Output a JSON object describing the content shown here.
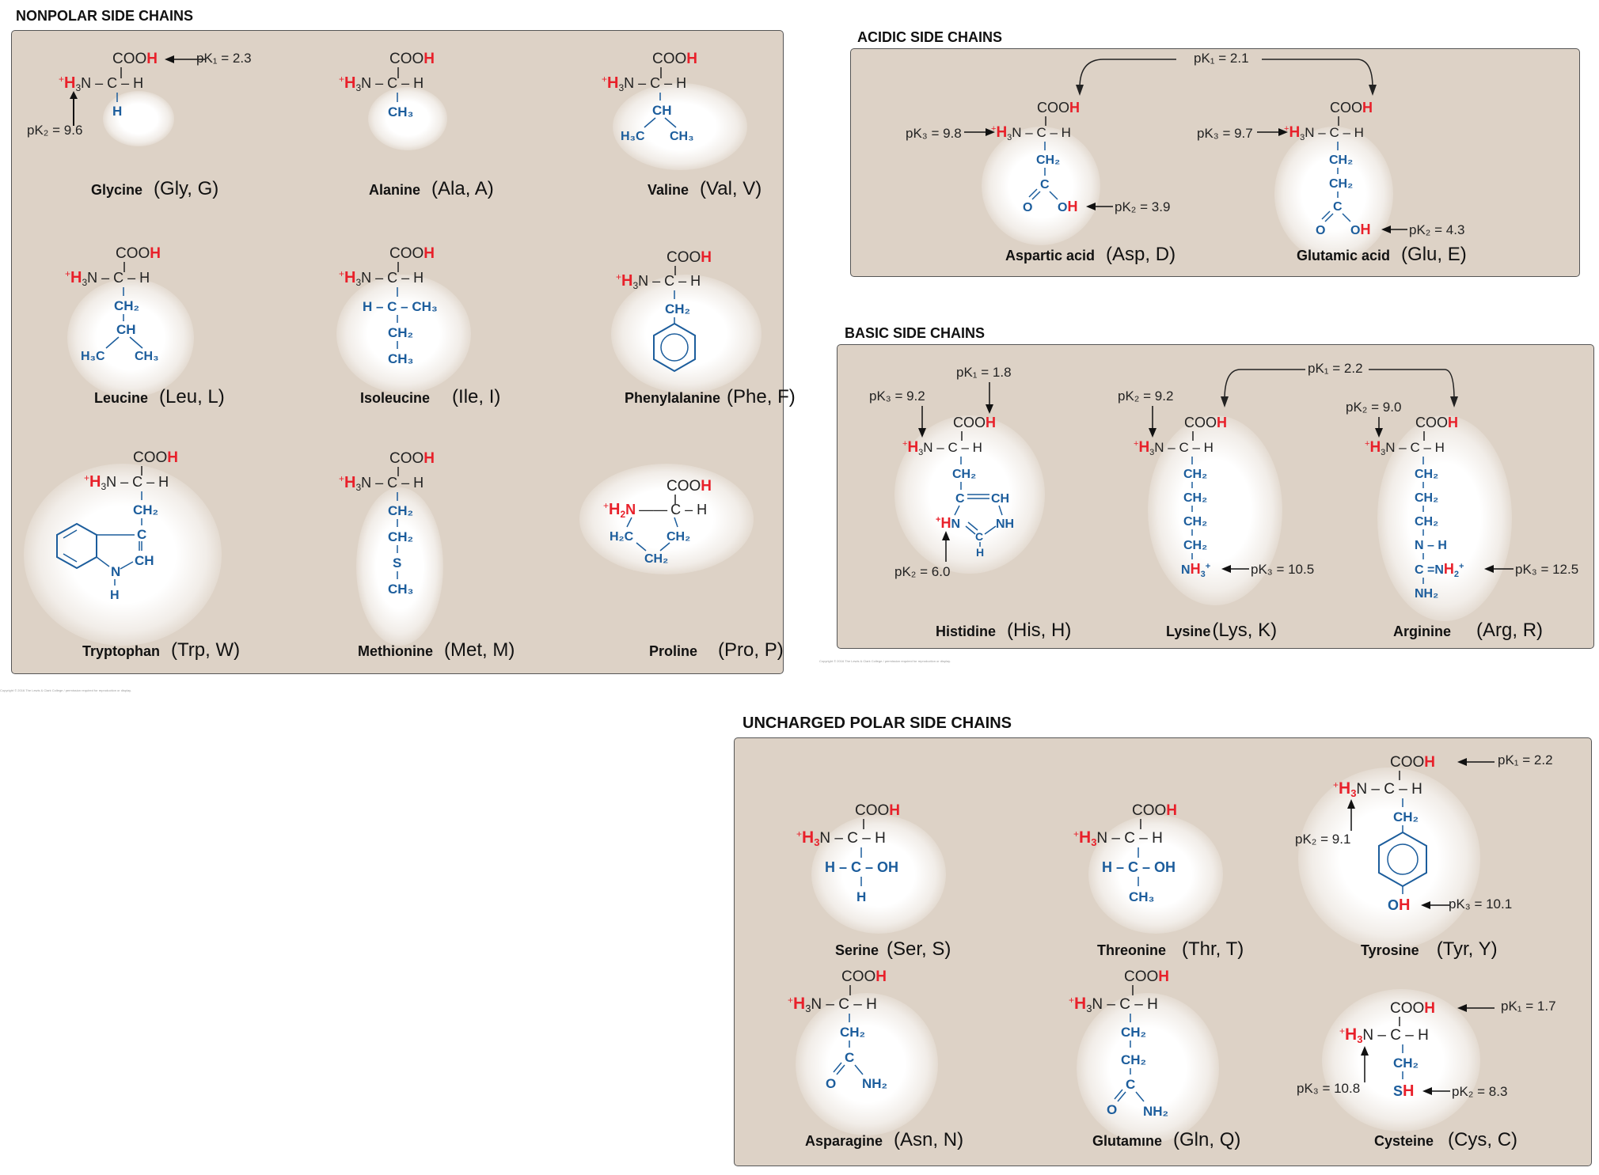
{
  "sections": {
    "nonpolar": "NONPOLAR SIDE CHAINS",
    "acidic": "ACIDIC SIDE CHAINS",
    "basic": "BASIC SIDE CHAINS",
    "polar": "UNCHARGED POLAR SIDE CHAINS"
  },
  "amino_acids": {
    "glycine": {
      "name": "Glycine",
      "abbr": "(Gly, G)"
    },
    "alanine": {
      "name": "Alanine",
      "abbr": "(Ala, A)"
    },
    "valine": {
      "name": "Valine",
      "abbr": "(Val, V)"
    },
    "leucine": {
      "name": "Leucine",
      "abbr": "(Leu, L)"
    },
    "isoleucine": {
      "name": "Isoleucine",
      "abbr": "(Ile, I)"
    },
    "phenylalanine": {
      "name": "Phenylalanine",
      "abbr": "(Phe, F)"
    },
    "tryptophan": {
      "name": "Tryptophan",
      "abbr": "(Trp, W)"
    },
    "methionine": {
      "name": "Methionine",
      "abbr": "(Met, M)"
    },
    "proline": {
      "name": "Proline",
      "abbr": "(Pro, P)"
    },
    "aspartic_acid": {
      "name": "Aspartic acid",
      "abbr": "(Asp, D)"
    },
    "glutamic_acid": {
      "name": "Glutamic acid",
      "abbr": "(Glu, E)"
    },
    "histidine": {
      "name": "Histidine",
      "abbr": "(His, H)"
    },
    "lysine": {
      "name": "Lysine",
      "abbr": "(Lys, K)"
    },
    "arginine": {
      "name": "Arginine",
      "abbr": "(Arg, R)"
    },
    "serine": {
      "name": "Serine",
      "abbr": "(Ser, S)"
    },
    "threonine": {
      "name": "Threonine",
      "abbr": "(Thr, T)"
    },
    "tyrosine": {
      "name": "Tyrosine",
      "abbr": "(Tyr, Y)"
    },
    "asparagine": {
      "name": "Asparagine",
      "abbr": "(Asn, N)"
    },
    "glutamine": {
      "name": "Glutamıne",
      "abbr": "(Gln, Q)"
    },
    "cysteine": {
      "name": "Cysteine",
      "abbr": "(Cys, C)"
    }
  },
  "pk": {
    "gly_pk1": "pK₁ = 2.3",
    "gly_pk2": "pK₂ = 9.6",
    "acidic_pk1": "pK₁ = 2.1",
    "asp_pk3": "pK₃ = 9.8",
    "asp_pk2": "pK₂ = 3.9",
    "glu_pk3": "pK₃ = 9.7",
    "glu_pk2": "pK₂ = 4.3",
    "his_pk3": "pK₃ = 9.2",
    "his_pk1": "pK₁ = 1.8",
    "his_pk2": "pK₂ = 6.0",
    "basic_pk1": "pK₁ = 2.2",
    "lys_pk2": "pK₂ = 9.2",
    "lys_pk3": "pK₃ = 10.5",
    "arg_pk2": "pK₂ = 9.0",
    "arg_pk3": "pK₃ = 12.5",
    "tyr_pk1": "pK₁ = 2.2",
    "tyr_pk2": "pK₂ = 9.1",
    "tyr_pk3": "pK₃ = 10.1",
    "cys_pk1": "pK₁ = 1.7",
    "cys_pk3": "pK₃ = 10.8",
    "cys_pk2": "pK₂ = 8.3"
  },
  "chem": {
    "cooh_co": "COO",
    "h": "H",
    "plus": "+",
    "n_c_h": "N – C – H",
    "c": "C",
    "ch": "CH",
    "ch2": "CH₂",
    "ch3": "CH₃",
    "h3c": "H₃C",
    "h2c": "H₂C",
    "s": "S",
    "o": "O",
    "oh": "OH",
    "nh": "NH",
    "nh2": "NH₂",
    "n": "N",
    "sh_s": "S",
    "h3n": "H₃N",
    "h2n": "H₂N",
    "hcch3": "H – C – CH₃",
    "hcoh": "H – C – OH",
    "nh_n": "N – H",
    "arg_cnh2": "C = NH₂⁺",
    "arg_cnh2_c": "C =",
    "nh3plus": "NH₃⁺",
    "c_eq_ch": "C ═══ CH"
  },
  "credits": {
    "left": "Copyright © 2016 The Lewis & Clark College / permission required for reproduction or display.",
    "right": "Copyright © 2016 The Lewis & Clark College / permission required for reproduction or display."
  },
  "colors": {
    "panel": "#ddd2c6",
    "red": "#e8202a",
    "blue": "#1c5d9c",
    "black": "#222222"
  }
}
